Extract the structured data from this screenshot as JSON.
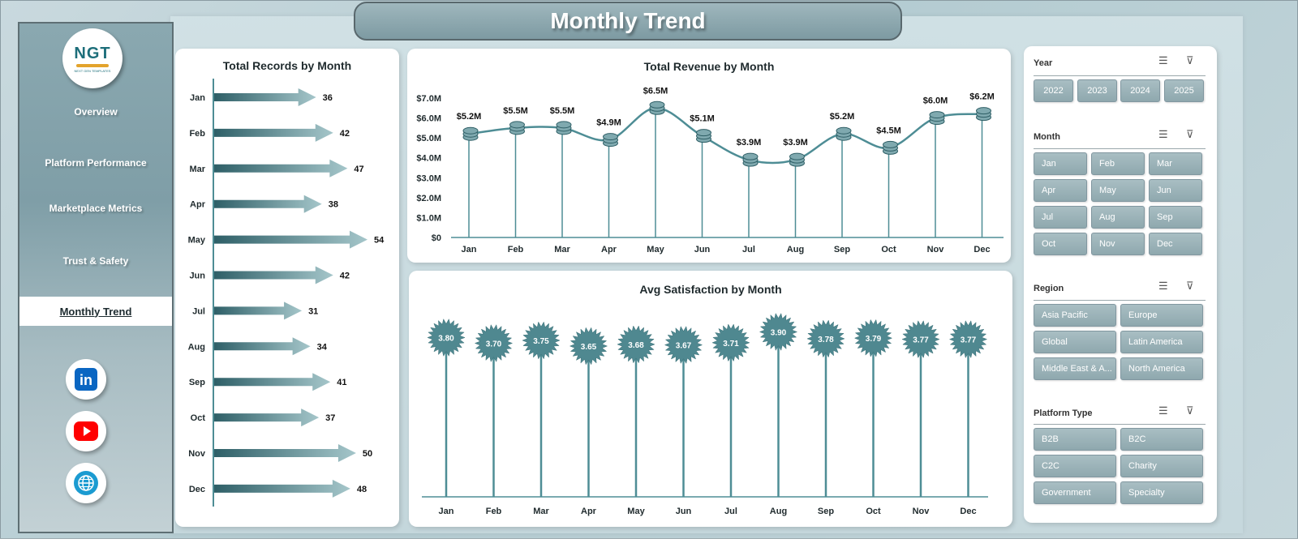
{
  "header": {
    "title": "Monthly Trend"
  },
  "logo": {
    "text": "NGT",
    "subtext": "NEXT GEN TEMPLATES"
  },
  "sidebar": {
    "items": [
      {
        "label": "Overview"
      },
      {
        "label": "Platform Performance"
      },
      {
        "label": "Marketplace Metrics"
      },
      {
        "label": "Trust & Safety"
      }
    ],
    "active": {
      "label": "Monthly Trend"
    },
    "social": [
      {
        "icon": "linkedin-icon",
        "text": "in",
        "color": "#0a66c2"
      },
      {
        "icon": "youtube-icon",
        "color": "#ff0000"
      },
      {
        "icon": "globe-icon",
        "color": "#1b9bd1"
      }
    ]
  },
  "colors": {
    "accent": "#2f6f78",
    "bar_start": "#2e5f67",
    "bar_end": "#9fc1c6",
    "line": "#4e8d95",
    "burst": "#4f8890"
  },
  "chart_data": [
    {
      "type": "bar",
      "title": "Total Records by Month",
      "orientation": "horizontal",
      "categories": [
        "Jan",
        "Feb",
        "Mar",
        "Apr",
        "May",
        "Jun",
        "Jul",
        "Aug",
        "Sep",
        "Oct",
        "Nov",
        "Dec"
      ],
      "values": [
        36,
        42,
        47,
        38,
        54,
        42,
        31,
        34,
        41,
        37,
        50,
        48
      ]
    },
    {
      "type": "line",
      "title": "Total Revenue  by Month",
      "categories": [
        "Jan",
        "Feb",
        "Mar",
        "Apr",
        "May",
        "Jun",
        "Jul",
        "Aug",
        "Sep",
        "Oct",
        "Nov",
        "Dec"
      ],
      "values": [
        5.2,
        5.5,
        5.5,
        4.9,
        6.5,
        5.1,
        3.9,
        3.9,
        5.2,
        4.5,
        6.0,
        6.2
      ],
      "data_labels": [
        "$5.2M",
        "$5.5M",
        "$5.5M",
        "$4.9M",
        "$6.5M",
        "$5.1M",
        "$3.9M",
        "$3.9M",
        "$5.2M",
        "$4.5M",
        "$6.0M",
        "$6.2M"
      ],
      "ylim": [
        0,
        7
      ],
      "yticks": [
        "$0",
        "$1.0M",
        "$2.0M",
        "$3.0M",
        "$4.0M",
        "$5.0M",
        "$6.0M",
        "$7.0M"
      ]
    },
    {
      "type": "scatter",
      "title": "Avg Satisfaction by Month",
      "categories": [
        "Jan",
        "Feb",
        "Mar",
        "Apr",
        "May",
        "Jun",
        "Jul",
        "Aug",
        "Sep",
        "Oct",
        "Nov",
        "Dec"
      ],
      "values": [
        3.8,
        3.7,
        3.75,
        3.65,
        3.68,
        3.67,
        3.71,
        3.9,
        3.78,
        3.79,
        3.77,
        3.77
      ],
      "data_labels": [
        "3.80",
        "3.70",
        "3.75",
        "3.65",
        "3.68",
        "3.67",
        "3.71",
        "3.90",
        "3.78",
        "3.79",
        "3.77",
        "3.77"
      ]
    }
  ],
  "slicers": [
    {
      "title": "Year",
      "options": [
        "2022",
        "2023",
        "2024",
        "2025"
      ]
    },
    {
      "title": "Month",
      "options": [
        "Jan",
        "Feb",
        "Mar",
        "Apr",
        "May",
        "Jun",
        "Jul",
        "Aug",
        "Sep",
        "Oct",
        "Nov",
        "Dec"
      ]
    },
    {
      "title": "Region",
      "options": [
        "Asia Pacific",
        "Europe",
        "Global",
        "Latin America",
        "Middle East & A...",
        "North America"
      ]
    },
    {
      "title": "Platform Type",
      "options": [
        "B2B",
        "B2C",
        "C2C",
        "Charity",
        "Government",
        "Specialty"
      ]
    }
  ]
}
